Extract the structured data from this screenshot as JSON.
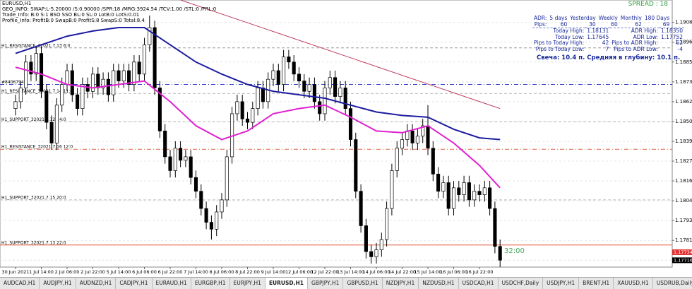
{
  "header": {
    "symbol": "EURUSD,H1",
    "lines": [
      "GEO_INFO: SWAP:L-5.20000 /S:0.90000 /SPR:18 /MRG:3924.54 /TCV:1.00 /STL:0 /FRL:0",
      "Trade_Info: B:0 S:1 BSO SSO BL:0 SL:0 LotB:0 LotS:0.01",
      "Profile_Info: ProfitB:0 SwapB:0 ProfitS:8 SwapS:0 Total:8.4"
    ],
    "spread": "SPREAD : 18"
  },
  "info_panel": {
    "adr_header": [
      "ADR:",
      "5 days",
      "Yesterday",
      "Weekly",
      "Monthly",
      "180 Days"
    ],
    "adr_row": [
      "Pips:",
      "60",
      "30",
      "60",
      "62",
      "69"
    ],
    "rows": [
      [
        "Today High:",
        "1.18131",
        "ADR High:",
        "1.18350"
      ],
      [
        "Today Low:",
        "1.17645",
        "ADR Low:",
        "1.17752"
      ],
      [
        "Pips to Today High:",
        "42",
        "Pips to ADR High:",
        "62"
      ],
      [
        "Pips to Today Low:",
        "7",
        "Pips to ADR Low:",
        "-4"
      ]
    ],
    "note": "Свеча: 10.4 п. Средняя в глубину: 10.1 п.",
    "timer": "32:00"
  },
  "chart_data": {
    "type": "candlestick",
    "ylim": [
      1.1766,
      1.1921
    ],
    "yticks": [
      {
        "value": 1.1908,
        "label": "1.19080"
      },
      1.18965,
      {
        "value": 1.1885,
        "label": "1.18850"
      },
      1.18735,
      {
        "value": 1.1862,
        "label": "1.18620"
      },
      1.18505,
      {
        "value": 1.1839,
        "label": "1.18390"
      },
      1.18275,
      {
        "value": 1.1816,
        "label": "1.18160"
      },
      1.18045,
      {
        "value": 1.1793,
        "label": "1.17930"
      },
      1.17815,
      {
        "value": 1.177,
        "label": "1.17700"
      }
    ],
    "grid": true,
    "categories": [
      "30 Jun 2021",
      null,
      null,
      null,
      null,
      "1 Jul 14:00",
      null,
      null,
      null,
      null,
      "2 Jul 06:00",
      null,
      null,
      null,
      null,
      "2 Jul 22:00",
      null,
      null,
      null,
      null,
      "5 Jul 14:00",
      null,
      null,
      null,
      null,
      "6 Jul 06:00",
      null,
      null,
      null,
      null,
      "6 Jul 22:00",
      null,
      null,
      null,
      null,
      "7 Jul 14:00",
      null,
      null,
      null,
      null,
      "8 Jul 06:00",
      null,
      null,
      null,
      null,
      "8 Jul 22:00",
      null,
      null,
      null,
      null,
      "9 Jul 14:00",
      null,
      null,
      null,
      null,
      "12 Jul 06:00",
      null,
      null,
      null,
      null,
      "12 Jul 22:00",
      null,
      null,
      null,
      null,
      "13 Jul 14:00",
      null,
      null,
      null,
      null,
      "14 Jul 06:00",
      null,
      null,
      null,
      null,
      "14 Jul 22:00",
      null,
      null,
      null,
      null,
      "15 Jul 14:00",
      null,
      null,
      null,
      null,
      "16 Jul 06:00",
      null,
      null,
      null,
      null,
      "16 Jul 22:00",
      null,
      null,
      null,
      null
    ],
    "open": [
      1.1858,
      1.1862,
      1.187,
      1.1885,
      1.1878,
      1.189,
      1.1868,
      1.185,
      1.1838,
      1.186,
      1.1872,
      1.188,
      1.1866,
      1.1858,
      1.1872,
      1.1868,
      1.1878,
      1.187,
      1.1875,
      1.1866,
      1.188,
      1.1874,
      1.188,
      1.1872,
      1.1885,
      1.1878,
      1.1895,
      1.1905,
      1.187,
      1.1845,
      1.183,
      1.1822,
      1.1835,
      1.1828,
      1.183,
      1.1818,
      1.181,
      1.18,
      1.1792,
      1.1788,
      1.1798,
      1.1805,
      1.183,
      1.1855,
      1.1862,
      1.1852,
      1.185,
      1.1858,
      1.187,
      1.1862,
      1.1875,
      1.188,
      1.1872,
      1.1888,
      1.1885,
      1.1878,
      1.1874,
      1.1868,
      1.1872,
      1.1862,
      1.1855,
      1.187,
      1.1876,
      1.1865,
      1.187,
      1.1858,
      1.184,
      1.181,
      1.179,
      1.1775,
      1.1772,
      1.1776,
      1.1782,
      1.18,
      1.1822,
      1.1835,
      1.184,
      1.1845,
      1.1838,
      1.1842,
      1.1848,
      1.1835,
      1.182,
      1.181,
      1.1815,
      1.18,
      1.1812,
      1.1808,
      1.1815,
      1.1805,
      1.181,
      1.1808,
      1.1812,
      1.18,
      1.1778
    ],
    "high": [
      1.1866,
      1.1874,
      1.1889,
      1.1889,
      1.1894,
      1.1894,
      1.1872,
      1.1854,
      1.1864,
      1.1876,
      1.1884,
      1.1884,
      1.187,
      1.1876,
      1.1876,
      1.1882,
      1.1882,
      1.1879,
      1.1879,
      1.1884,
      1.1884,
      1.1884,
      1.1884,
      1.1889,
      1.1889,
      1.1899,
      1.1912,
      1.1909,
      1.1874,
      1.1849,
      1.1834,
      1.1839,
      1.1839,
      1.1834,
      1.1834,
      1.1822,
      1.1814,
      1.1804,
      1.1796,
      1.1802,
      1.1809,
      1.1834,
      1.1859,
      1.1866,
      1.1866,
      1.1856,
      1.1862,
      1.1874,
      1.1874,
      1.1879,
      1.1884,
      1.1884,
      1.1892,
      1.1892,
      1.1889,
      1.1882,
      1.1878,
      1.1876,
      1.1876,
      1.1866,
      1.1874,
      1.188,
      1.188,
      1.1874,
      1.1874,
      1.1862,
      1.1844,
      1.1814,
      1.1794,
      1.1779,
      1.178,
      1.1786,
      1.1804,
      1.1826,
      1.1839,
      1.1844,
      1.1849,
      1.1849,
      1.1846,
      1.1852,
      1.186,
      1.1839,
      1.1824,
      1.1819,
      1.1819,
      1.1816,
      1.1816,
      1.1819,
      1.1819,
      1.1814,
      1.1814,
      1.1816,
      1.1816,
      1.1804,
      1.1782
    ],
    "low": [
      1.1854,
      1.1858,
      1.1866,
      1.1874,
      1.1874,
      1.1864,
      1.1846,
      1.1834,
      1.1834,
      1.1856,
      1.1868,
      1.1862,
      1.1854,
      1.1854,
      1.1864,
      1.1864,
      1.1866,
      1.1866,
      1.1862,
      1.1862,
      1.187,
      1.187,
      1.1868,
      1.1868,
      1.1874,
      1.1874,
      1.1891,
      1.1866,
      1.1841,
      1.1826,
      1.1818,
      1.1818,
      1.1824,
      1.1824,
      1.1814,
      1.1806,
      1.1796,
      1.1788,
      1.1782,
      1.1784,
      1.1794,
      1.1801,
      1.1826,
      1.1851,
      1.1848,
      1.1846,
      1.1846,
      1.1854,
      1.1858,
      1.1858,
      1.1871,
      1.1868,
      1.1868,
      1.1881,
      1.1874,
      1.187,
      1.1864,
      1.1864,
      1.1858,
      1.1851,
      1.1851,
      1.1866,
      1.1861,
      1.1861,
      1.1854,
      1.1836,
      1.1806,
      1.1786,
      1.1771,
      1.1768,
      1.1768,
      1.1772,
      1.1778,
      1.1796,
      1.1818,
      1.1831,
      1.1836,
      1.1834,
      1.1834,
      1.1838,
      1.1831,
      1.1816,
      1.1806,
      1.1806,
      1.1796,
      1.1796,
      1.1804,
      1.1804,
      1.1801,
      1.1801,
      1.1804,
      1.1804,
      1.1796,
      1.1774,
      1.1766
    ],
    "close": [
      1.1862,
      1.187,
      1.1885,
      1.1878,
      1.189,
      1.1868,
      1.185,
      1.1838,
      1.186,
      1.1872,
      1.188,
      1.1866,
      1.1858,
      1.1872,
      1.1868,
      1.1878,
      1.187,
      1.1875,
      1.1866,
      1.188,
      1.1874,
      1.188,
      1.1872,
      1.1885,
      1.1878,
      1.1895,
      1.1905,
      1.187,
      1.1845,
      1.183,
      1.1822,
      1.1835,
      1.1828,
      1.183,
      1.1818,
      1.181,
      1.18,
      1.1792,
      1.1788,
      1.1798,
      1.1805,
      1.183,
      1.1855,
      1.1862,
      1.1852,
      1.185,
      1.1858,
      1.187,
      1.1862,
      1.1875,
      1.188,
      1.1872,
      1.1888,
      1.1885,
      1.1878,
      1.1874,
      1.1868,
      1.1872,
      1.1862,
      1.1855,
      1.187,
      1.1876,
      1.1865,
      1.187,
      1.1858,
      1.184,
      1.181,
      1.179,
      1.1775,
      1.1772,
      1.1776,
      1.1782,
      1.18,
      1.1822,
      1.1835,
      1.184,
      1.1845,
      1.1838,
      1.1842,
      1.1848,
      1.1835,
      1.182,
      1.181,
      1.1815,
      1.18,
      1.1812,
      1.1808,
      1.1815,
      1.1805,
      1.181,
      1.1808,
      1.1812,
      1.18,
      1.1778,
      1.177
    ],
    "overlays": [
      {
        "color": "#1c1ca0",
        "width": 2,
        "x": [
          0,
          5,
          10,
          15,
          20,
          25,
          30,
          35,
          40,
          45,
          50,
          55,
          60,
          65,
          70,
          75,
          80,
          85,
          90,
          94
        ],
        "values": [
          1.189,
          1.1895,
          1.19,
          1.1903,
          1.1905,
          1.1905,
          1.1895,
          1.1885,
          1.1878,
          1.1872,
          1.1868,
          1.1866,
          1.1864,
          1.186,
          1.1856,
          1.1854,
          1.1853,
          1.1846,
          1.1841,
          1.184
        ]
      },
      {
        "color": "#e020d0",
        "width": 2,
        "x": [
          0,
          5,
          10,
          15,
          20,
          25,
          30,
          35,
          40,
          45,
          50,
          55,
          60,
          65,
          70,
          75,
          80,
          85,
          90,
          94
        ],
        "values": [
          1.1882,
          1.1878,
          1.1872,
          1.187,
          1.1872,
          1.1874,
          1.1862,
          1.1848,
          1.184,
          1.1845,
          1.1855,
          1.1858,
          1.186,
          1.1853,
          1.1845,
          1.1844,
          1.1848,
          1.1838,
          1.1825,
          1.1812
        ]
      },
      {
        "color": "#c04060",
        "width": 1,
        "x": [
          32,
          94
        ],
        "values": [
          1.1921,
          1.1858
        ]
      }
    ],
    "levels": [
      {
        "value": 1.18932,
        "label": "H1_RESISTANCE_32021.7.13 6:0",
        "color": "#999999",
        "dash": "4 3"
      },
      {
        "value": 1.1872,
        "label": "#8406794",
        "color": "#3040d0",
        "dash": "6 3 1 3"
      },
      {
        "value": 1.18667,
        "label": "H1_RESISTANCE_32021.7.14 11:0",
        "color": "#bbbbbb",
        "dash": "4 3"
      },
      {
        "value": 1.18503,
        "label": "H1_SUPPORT_32021.7.12 14:0",
        "color": "#bbbbbb",
        "dash": "4 3"
      },
      {
        "value": 1.18344,
        "label": "H1_RESISTANCE_32021.7.16 12:0",
        "color": "#e06040",
        "dash": "6 3 1 3"
      },
      {
        "value": 1.1805,
        "label": "H1_SUPPORT_32021.7.15 20:0",
        "color": "#bbbbbb",
        "dash": "4 3"
      },
      {
        "value": 1.17788,
        "label": "H1_SUPPORT_32021.7.13 22:0",
        "color": "#e05030",
        "dash": ""
      }
    ],
    "price_markers": [
      {
        "value": 1.17734,
        "color": "#e03030"
      },
      {
        "value": 1.17716,
        "color": "#000000"
      }
    ]
  },
  "tabs": [
    "AUDCAD,H1",
    "AUDJPY,H1",
    "AUDNZD,H1",
    "CADJPY,H1",
    "EURAUD,H1",
    "EURGBP,H1",
    "EURJPY,H1",
    "EURUSD,H1",
    "GBPJPY,H1",
    "GBPUSD,H1",
    "NZDJPY,H1",
    "NZDUSD,H1",
    "USDCAD,H1",
    "USDCHF,Daily",
    "USDJPY,H1",
    "BRENT,H1",
    "XAUUSD,H1",
    "USDRUB,Daily",
    "EURUSD,H1"
  ],
  "active_tab": 7
}
